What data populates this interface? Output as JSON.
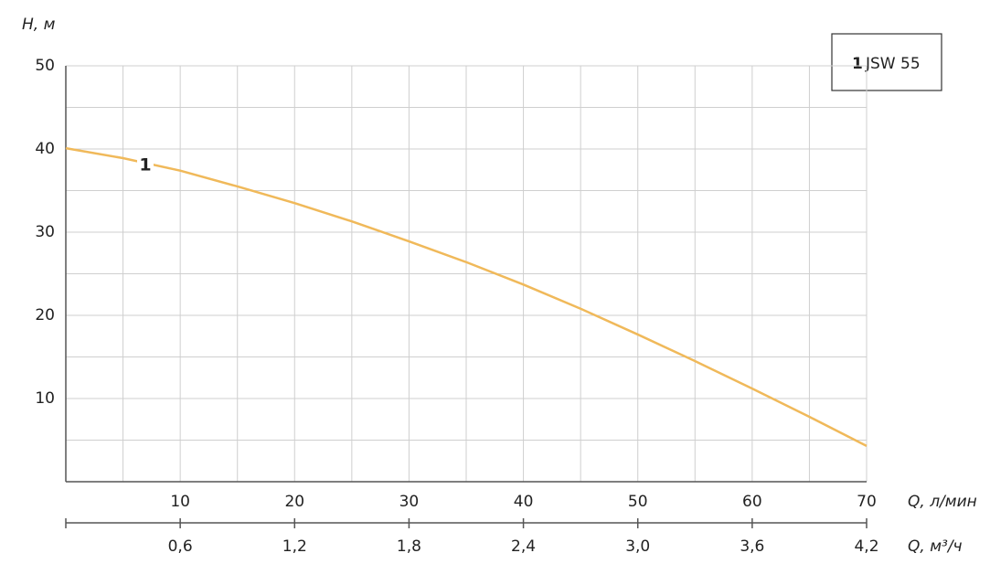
{
  "chart_data": {
    "type": "line",
    "y_label": "H, м",
    "x_label": "Q, л/мин",
    "x2_label": "Q, м³/ч",
    "x": [
      0,
      5,
      10,
      15,
      20,
      25,
      30,
      35,
      40,
      45,
      50,
      55,
      60,
      65,
      70
    ],
    "series": [
      {
        "name": "JSW 55",
        "label": "1",
        "color": "#f0b95a",
        "values": [
          40.1,
          38.9,
          37.4,
          35.5,
          33.5,
          31.3,
          28.9,
          26.4,
          23.7,
          20.8,
          17.7,
          14.5,
          11.2,
          7.8,
          4.3
        ]
      }
    ],
    "xlim": [
      0,
      70
    ],
    "xticks": [
      10,
      20,
      30,
      40,
      50,
      60,
      70
    ],
    "xminorticks": [
      5,
      15,
      25,
      35,
      45,
      55,
      65
    ],
    "ylim": [
      0,
      50
    ],
    "yticks": [
      10,
      20,
      30,
      40,
      50
    ],
    "yminorticks": [
      5,
      15,
      25,
      35,
      45
    ],
    "x2lim": [
      0,
      4.2
    ],
    "x2ticks": [
      {
        "value": 0.6,
        "label": "0,6"
      },
      {
        "value": 1.2,
        "label": "1,2"
      },
      {
        "value": 1.8,
        "label": "1,8"
      },
      {
        "value": 2.4,
        "label": "2,4"
      },
      {
        "value": 3.0,
        "label": "3,0"
      },
      {
        "value": 3.6,
        "label": "3,6"
      },
      {
        "value": 4.2,
        "label": "4,2"
      }
    ],
    "grid": true,
    "legend": "upper right"
  }
}
